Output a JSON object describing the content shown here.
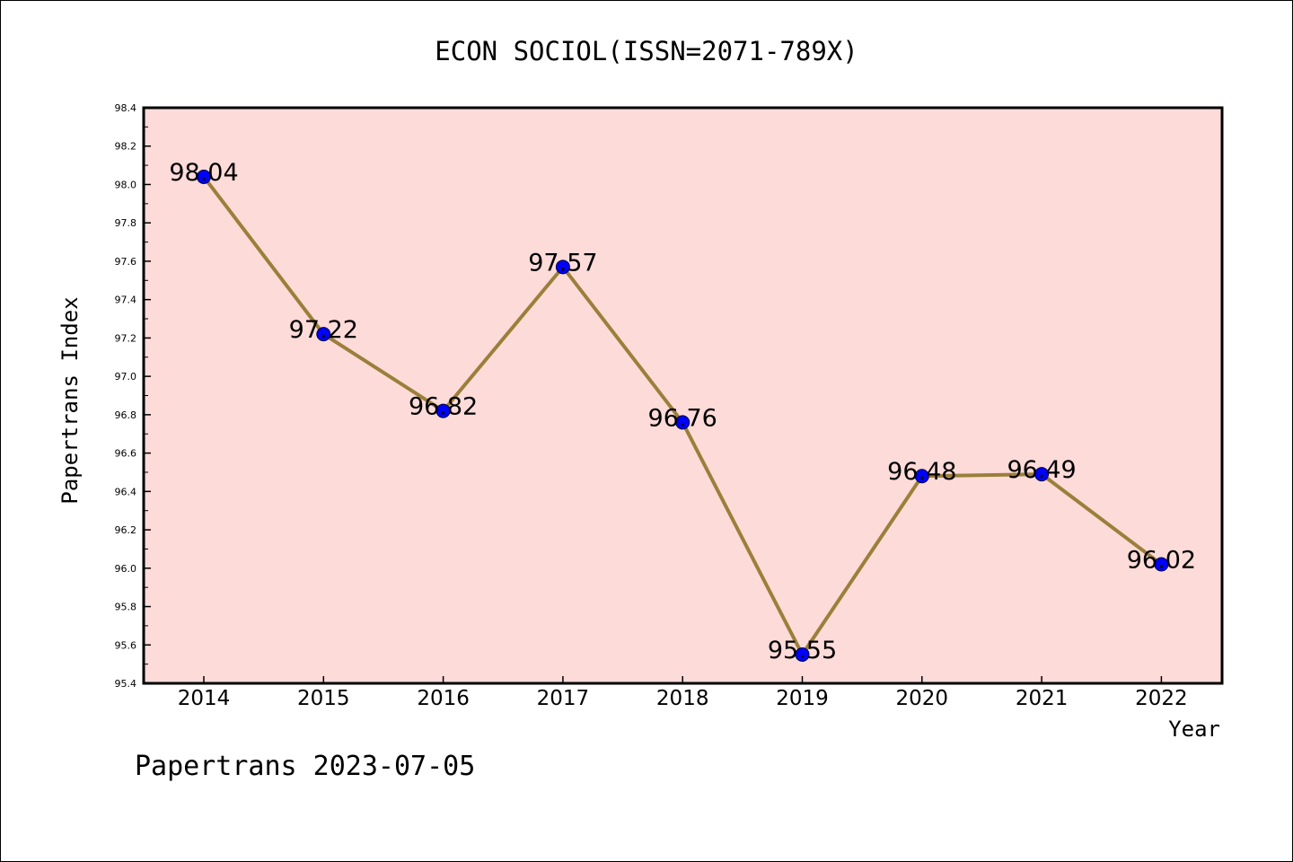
{
  "chart_data": {
    "type": "line",
    "title": "ECON SOCIOL(ISSN=2071-789X)",
    "xlabel": "Year",
    "ylabel": "Papertrans Index",
    "footer": "Papertrans 2023-07-05",
    "x": [
      "2014",
      "2015",
      "2016",
      "2017",
      "2018",
      "2019",
      "2020",
      "2021",
      "2022"
    ],
    "series": [
      {
        "values": [
          98.04,
          97.22,
          96.82,
          97.57,
          96.76,
          95.55,
          96.48,
          96.49,
          96.02
        ],
        "labels": [
          "98.04",
          "97.22",
          "96.82",
          "97.57",
          "96.76",
          "95.55",
          "96.48",
          "96.49",
          "96.02"
        ]
      }
    ],
    "ylim": [
      95.4,
      98.4
    ],
    "yticks": [
      "95.4",
      "95.6",
      "95.8",
      "96.0",
      "96.2",
      "96.4",
      "96.6",
      "96.8",
      "97.0",
      "97.2",
      "97.4",
      "97.6",
      "97.8",
      "98.0",
      "98.2",
      "98.4"
    ],
    "grid": false,
    "colors": {
      "plot_background": "#fddbd9",
      "line": "#9b7f3a",
      "marker": "#0000ff"
    }
  }
}
